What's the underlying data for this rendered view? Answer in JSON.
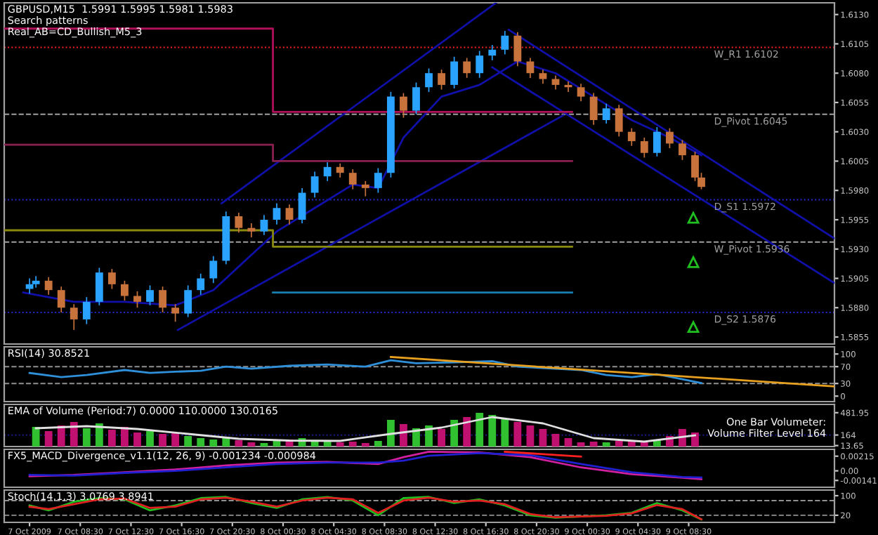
{
  "chart_data": [
    {
      "type": "candlestick",
      "title": "GBPUSD,M15  1.5991 1.5995 1.5981 1.5983",
      "annotations": [
        "Search patterns",
        "Real_AB=CD_Bullish_M5_3"
      ],
      "x": [
        "2009-10-07T04:30",
        "2009-10-07T05:00",
        "2009-10-07T06:00",
        "2009-10-07T07:00",
        "2009-10-07T08:00",
        "2009-10-07T09:00",
        "2009-10-07T10:00",
        "2009-10-07T11:00",
        "2009-10-07T12:00",
        "2009-10-07T13:00",
        "2009-10-07T14:00",
        "2009-10-07T15:00",
        "2009-10-07T16:00",
        "2009-10-07T17:00",
        "2009-10-07T18:00",
        "2009-10-07T19:00",
        "2009-10-07T20:00",
        "2009-10-07T21:00",
        "2009-10-07T22:00",
        "2009-10-07T23:00",
        "2009-10-08T00:00",
        "2009-10-08T01:00",
        "2009-10-08T02:00",
        "2009-10-08T03:00",
        "2009-10-08T04:00",
        "2009-10-08T05:00",
        "2009-10-08T06:00",
        "2009-10-08T07:00",
        "2009-10-08T08:00",
        "2009-10-08T09:00",
        "2009-10-08T10:00",
        "2009-10-08T11:00",
        "2009-10-08T12:00",
        "2009-10-08T13:00",
        "2009-10-08T14:00",
        "2009-10-08T15:00",
        "2009-10-08T16:00",
        "2009-10-08T17:00",
        "2009-10-08T18:00",
        "2009-10-08T19:00",
        "2009-10-08T20:00",
        "2009-10-08T21:00",
        "2009-10-08T22:00",
        "2009-10-08T23:00",
        "2009-10-09T00:00",
        "2009-10-09T01:00",
        "2009-10-09T02:00",
        "2009-10-09T03:00",
        "2009-10-09T04:00",
        "2009-10-09T05:00",
        "2009-10-09T06:00",
        "2009-10-09T07:00",
        "2009-10-09T08:00",
        "2009-10-09T09:00",
        "2009-10-09T09:30"
      ],
      "ohlc": [
        [
          1.5896,
          1.5905,
          1.5892,
          1.59
        ],
        [
          1.59,
          1.5907,
          1.5897,
          1.5903
        ],
        [
          1.5903,
          1.5906,
          1.5891,
          1.5895
        ],
        [
          1.5895,
          1.5898,
          1.5876,
          1.588
        ],
        [
          1.588,
          1.5883,
          1.5861,
          1.587
        ],
        [
          1.587,
          1.5889,
          1.5866,
          1.5885
        ],
        [
          1.5885,
          1.5914,
          1.5882,
          1.591
        ],
        [
          1.591,
          1.5913,
          1.5896,
          1.59
        ],
        [
          1.59,
          1.5903,
          1.5886,
          1.589
        ],
        [
          1.589,
          1.5894,
          1.588,
          1.5885
        ],
        [
          1.5885,
          1.5899,
          1.5882,
          1.5895
        ],
        [
          1.5895,
          1.5898,
          1.5876,
          1.588
        ],
        [
          1.588,
          1.5883,
          1.5868,
          1.5875
        ],
        [
          1.5875,
          1.5899,
          1.5872,
          1.5895
        ],
        [
          1.5895,
          1.5909,
          1.5891,
          1.5905
        ],
        [
          1.5905,
          1.5924,
          1.5901,
          1.592
        ],
        [
          1.592,
          1.5962,
          1.5917,
          1.5958
        ],
        [
          1.5958,
          1.5961,
          1.5944,
          1.5948
        ],
        [
          1.5948,
          1.5952,
          1.594,
          1.5945
        ],
        [
          1.5945,
          1.5959,
          1.5942,
          1.5955
        ],
        [
          1.5955,
          1.5969,
          1.5951,
          1.5965
        ],
        [
          1.5965,
          1.5968,
          1.5951,
          1.5955
        ],
        [
          1.5955,
          1.5982,
          1.5952,
          1.5978
        ],
        [
          1.5978,
          1.5996,
          1.5974,
          1.5992
        ],
        [
          1.5992,
          1.6004,
          1.5988,
          1.6
        ],
        [
          1.6,
          1.6003,
          1.5991,
          1.5995
        ],
        [
          1.5995,
          1.5998,
          1.5981,
          1.5985
        ],
        [
          1.5985,
          1.5988,
          1.5975,
          1.5982
        ],
        [
          1.5982,
          1.5999,
          1.5978,
          1.5995
        ],
        [
          1.5995,
          1.6064,
          1.5991,
          1.606
        ],
        [
          1.606,
          1.6063,
          1.6042,
          1.6048
        ],
        [
          1.6048,
          1.6072,
          1.6045,
          1.6068
        ],
        [
          1.6068,
          1.6084,
          1.6064,
          1.608
        ],
        [
          1.608,
          1.6083,
          1.6066,
          1.607
        ],
        [
          1.607,
          1.6094,
          1.6067,
          1.609
        ],
        [
          1.609,
          1.6093,
          1.6076,
          1.608
        ],
        [
          1.608,
          1.6099,
          1.6076,
          1.6095
        ],
        [
          1.6095,
          1.6104,
          1.6091,
          1.61
        ],
        [
          1.61,
          1.6116,
          1.6096,
          1.6112
        ],
        [
          1.6112,
          1.6115,
          1.6086,
          1.609
        ],
        [
          1.609,
          1.6093,
          1.6076,
          1.608
        ],
        [
          1.608,
          1.6083,
          1.6071,
          1.6075
        ],
        [
          1.6075,
          1.6078,
          1.6066,
          1.607
        ],
        [
          1.607,
          1.6073,
          1.6064,
          1.6068
        ],
        [
          1.6068,
          1.6071,
          1.6056,
          1.606
        ],
        [
          1.606,
          1.6063,
          1.6036,
          1.604
        ],
        [
          1.604,
          1.6054,
          1.6037,
          1.605
        ],
        [
          1.605,
          1.6053,
          1.6026,
          1.603
        ],
        [
          1.603,
          1.6033,
          1.6018,
          1.6022
        ],
        [
          1.6022,
          1.6025,
          1.6008,
          1.6012
        ],
        [
          1.6012,
          1.6034,
          1.6009,
          1.603
        ],
        [
          1.603,
          1.6033,
          1.6016,
          1.602
        ],
        [
          1.602,
          1.6023,
          1.6006,
          1.601
        ],
        [
          1.601,
          1.6013,
          1.5988,
          1.5991
        ],
        [
          1.5991,
          1.5995,
          1.5981,
          1.5983
        ]
      ],
      "colors": [
        "#29a3ff",
        "#29a3ff",
        "#c8733c",
        "#c8733c",
        "#c8733c",
        "#29a3ff",
        "#29a3ff",
        "#c8733c",
        "#c8733c",
        "#c8733c",
        "#29a3ff",
        "#c8733c",
        "#c8733c",
        "#29a3ff",
        "#29a3ff",
        "#29a3ff",
        "#29a3ff",
        "#c8733c",
        "#c8733c",
        "#29a3ff",
        "#29a3ff",
        "#c8733c",
        "#29a3ff",
        "#29a3ff",
        "#29a3ff",
        "#c8733c",
        "#c8733c",
        "#c8733c",
        "#29a3ff",
        "#29a3ff",
        "#c8733c",
        "#29a3ff",
        "#29a3ff",
        "#c8733c",
        "#29a3ff",
        "#c8733c",
        "#29a3ff",
        "#29a3ff",
        "#29a3ff",
        "#c8733c",
        "#c8733c",
        "#c8733c",
        "#c8733c",
        "#c8733c",
        "#c8733c",
        "#c8733c",
        "#29a3ff",
        "#c8733c",
        "#c8733c",
        "#c8733c",
        "#29a3ff",
        "#c8733c",
        "#c8733c",
        "#c8733c",
        "#c8733c"
      ],
      "series": [
        {
          "type": "line",
          "color": "#1010a8",
          "x": [
            "2009-10-07T04:00",
            "2009-10-07T08:00",
            "2009-10-07T12:00",
            "2009-10-07T16:00",
            "2009-10-07T19:00",
            "2009-10-07T21:00",
            "2009-10-08T00:00",
            "2009-10-08T03:00",
            "2009-10-08T06:00",
            "2009-10-08T08:00",
            "2009-10-08T10:00",
            "2009-10-08T13:00",
            "2009-10-08T16:00",
            "2009-10-08T19:00",
            "2009-10-08T22:00",
            "2009-10-09T01:00",
            "2009-10-09T04:00",
            "2009-10-09T07:00",
            "2009-10-09T09:30"
          ],
          "values": [
            1.5893,
            1.5885,
            1.5885,
            1.5882,
            1.5895,
            1.5915,
            1.5945,
            1.5965,
            1.5985,
            1.5982,
            1.6025,
            1.606,
            1.607,
            1.609,
            1.608,
            1.606,
            1.604,
            1.6025,
            1.601
          ]
        },
        {
          "type": "line",
          "color": "#1010a8",
          "x": [
            "2009-10-07T19:39",
            "2009-10-08T17:18"
          ],
          "values": [
            1.5969,
            1.614
          ]
        },
        {
          "type": "line",
          "color": "#1010a8",
          "x": [
            "2009-10-07T16:12",
            "2009-10-08T22:36"
          ],
          "values": [
            1.5861,
            1.6044
          ]
        },
        {
          "type": "line",
          "color": "#1010a8",
          "x": [
            "2009-10-08T18:18",
            "2009-10-09T20:00"
          ],
          "values": [
            1.6117,
            1.5939
          ]
        },
        {
          "type": "line",
          "color": "#1010a8",
          "x": [
            "2009-10-08T17:00",
            "2009-10-09T20:00"
          ],
          "values": [
            1.6085,
            1.5901
          ]
        },
        {
          "type": "step",
          "color": "#b0105a",
          "x": [
            "2009-10-07T02:30",
            "2009-10-07T23:42",
            "2009-10-08T23:18"
          ],
          "values": [
            1.6118,
            1.6047,
            1.6047
          ]
        },
        {
          "type": "step",
          "color": "#8a2050",
          "x": [
            "2009-10-07T02:30",
            "2009-10-07T23:42",
            "2009-10-08T23:18"
          ],
          "values": [
            1.6019,
            1.6005,
            1.6005
          ]
        },
        {
          "type": "step",
          "color": "#8a8a10",
          "x": [
            "2009-10-07T02:30",
            "2009-10-07T23:42",
            "2009-10-08T23:18"
          ],
          "values": [
            1.5946,
            1.5932,
            1.5932
          ]
        },
        {
          "type": "step",
          "color": "#1880b0",
          "x": [
            "2009-10-07T23:42",
            "2009-10-08T23:18"
          ],
          "values": [
            1.5893,
            1.5893
          ]
        }
      ],
      "ref_lines": [
        {
          "axis": "y",
          "value": 1.6102,
          "label": "W_R1 1.6102",
          "color": "#ff2020",
          "line_style": "dotted"
        },
        {
          "axis": "y",
          "value": 1.6045,
          "label": "D_Pivot 1.6045",
          "color": "#a0a0a0",
          "line_style": "dashed"
        },
        {
          "axis": "y",
          "value": 1.5972,
          "label": "D_S1 1.5972",
          "color": "#2828d0",
          "line_style": "dotted"
        },
        {
          "axis": "y",
          "value": 1.5936,
          "label": "W_Pivot 1.5936",
          "color": "#a0a0a0",
          "line_style": "dashed"
        },
        {
          "axis": "y",
          "value": 1.5876,
          "label": "D_S2 1.5876",
          "color": "#2828d0",
          "line_style": "dotted"
        }
      ],
      "xlim": [
        "2009-10-07T02:30",
        "2009-10-09T20:00"
      ],
      "ylim": [
        1.5849,
        1.614
      ],
      "yticks": [
        {
          "value": 1.613,
          "label": "1.6130"
        },
        {
          "value": 1.6105,
          "label": "1.6105"
        },
        {
          "value": 1.608,
          "label": "1.6080"
        },
        {
          "value": 1.6055,
          "label": "1.6055"
        },
        {
          "value": 1.603,
          "label": "1.6030"
        },
        {
          "value": 1.6005,
          "label": "1.6005"
        },
        {
          "value": 1.598,
          "label": "1.5980"
        },
        {
          "value": 1.5955,
          "label": "1.5955"
        },
        {
          "value": 1.593,
          "label": "1.5930"
        },
        {
          "value": 1.5905,
          "label": "1.5905"
        },
        {
          "value": 1.588,
          "label": "1.5880"
        },
        {
          "value": 1.5855,
          "label": "1.5855"
        }
      ],
      "tick_labels": "y"
    },
    {
      "type": "line",
      "title": "RSI(14) 30.8521",
      "series": [
        {
          "color": "#2f8fd8",
          "x": [
            "2009-10-07T04:30",
            "2009-10-07T07:00",
            "2009-10-07T09:00",
            "2009-10-07T12:00",
            "2009-10-07T14:00",
            "2009-10-07T16:00",
            "2009-10-07T18:00",
            "2009-10-07T20:00",
            "2009-10-07T22:00",
            "2009-10-08T01:00",
            "2009-10-08T04:00",
            "2009-10-08T07:00",
            "2009-10-08T09:00",
            "2009-10-08T11:00",
            "2009-10-08T14:00",
            "2009-10-08T17:00",
            "2009-10-08T19:00",
            "2009-10-08T22:00",
            "2009-10-09T00:00",
            "2009-10-09T02:00",
            "2009-10-09T04:00",
            "2009-10-09T06:00",
            "2009-10-09T08:00",
            "2009-10-09T09:30"
          ],
          "values": [
            55,
            45,
            50,
            62,
            55,
            58,
            60,
            70,
            65,
            72,
            75,
            70,
            85,
            78,
            80,
            83,
            70,
            65,
            62,
            50,
            45,
            52,
            40,
            30.8521
          ]
        },
        {
          "color": "#e8a020",
          "x": [
            "2009-10-08T09:00",
            "2009-10-09T20:00"
          ],
          "values": [
            93,
            23
          ]
        }
      ],
      "ref_lines": [
        {
          "axis": "y",
          "value": 70,
          "color": "#909090",
          "line_style": "dashed"
        },
        {
          "axis": "y",
          "value": 30,
          "color": "#909090",
          "line_style": "dashed"
        }
      ],
      "xlim": [
        "2009-10-07T02:30",
        "2009-10-09T20:00"
      ],
      "ylim": [
        -13,
        117
      ],
      "yticks": [
        100,
        70,
        30,
        0
      ],
      "tick_labels": "y"
    },
    {
      "type": "bar",
      "title": "EMA of Volume (Period:7) 0.0000 110.0000 130.0165",
      "annotations": [
        "One Bar Volumeter:",
        "Volume Filter Level 164"
      ],
      "series": [
        {
          "type": "bar",
          "x": [
            "2009-10-07T05:00",
            "2009-10-07T06:00",
            "2009-10-07T07:00",
            "2009-10-07T08:00",
            "2009-10-07T09:00",
            "2009-10-07T10:00",
            "2009-10-07T11:00",
            "2009-10-07T12:00",
            "2009-10-07T13:00",
            "2009-10-07T14:00",
            "2009-10-07T15:00",
            "2009-10-07T16:00",
            "2009-10-07T17:00",
            "2009-10-07T18:00",
            "2009-10-07T19:00",
            "2009-10-07T20:00",
            "2009-10-07T21:00",
            "2009-10-07T22:00",
            "2009-10-07T23:00",
            "2009-10-08T00:00",
            "2009-10-08T01:00",
            "2009-10-08T02:00",
            "2009-10-08T03:00",
            "2009-10-08T04:00",
            "2009-10-08T05:00",
            "2009-10-08T06:00",
            "2009-10-08T07:00",
            "2009-10-08T08:00",
            "2009-10-08T09:00",
            "2009-10-08T10:00",
            "2009-10-08T11:00",
            "2009-10-08T12:00",
            "2009-10-08T13:00",
            "2009-10-08T14:00",
            "2009-10-08T15:00",
            "2009-10-08T16:00",
            "2009-10-08T17:00",
            "2009-10-08T18:00",
            "2009-10-08T19:00",
            "2009-10-08T20:00",
            "2009-10-08T21:00",
            "2009-10-08T22:00",
            "2009-10-08T23:00",
            "2009-10-09T00:00",
            "2009-10-09T01:00",
            "2009-10-09T02:00",
            "2009-10-09T03:00",
            "2009-10-09T04:00",
            "2009-10-09T05:00",
            "2009-10-09T06:00",
            "2009-10-09T07:00",
            "2009-10-09T08:00",
            "2009-10-09T09:00"
          ],
          "values": [
            280,
            220,
            300,
            350,
            260,
            330,
            240,
            280,
            200,
            220,
            180,
            200,
            150,
            120,
            100,
            130,
            90,
            60,
            50,
            80,
            100,
            120,
            90,
            80,
            60,
            70,
            50,
            80,
            380,
            320,
            260,
            300,
            250,
            380,
            420,
            480,
            450,
            400,
            350,
            300,
            250,
            180,
            120,
            60,
            70,
            60,
            80,
            70,
            60,
            100,
            150,
            250,
            200
          ],
          "colors": [
            "#30c030",
            "#c01070",
            "#c01070",
            "#c01070",
            "#30c030",
            "#30c030",
            "#c01070",
            "#c01070",
            "#c01070",
            "#30c030",
            "#c01070",
            "#c01070",
            "#30c030",
            "#30c030",
            "#30c030",
            "#30c030",
            "#c01070",
            "#c01070",
            "#30c030",
            "#30c030",
            "#c01070",
            "#30c030",
            "#30c030",
            "#30c030",
            "#c01070",
            "#c01070",
            "#c01070",
            "#30c030",
            "#30c030",
            "#c01070",
            "#30c030",
            "#30c030",
            "#c01070",
            "#30c030",
            "#c01070",
            "#30c030",
            "#30c030",
            "#30c030",
            "#c01070",
            "#c01070",
            "#c01070",
            "#c01070",
            "#c01070",
            "#c01070",
            "#c01070",
            "#30c030",
            "#c01070",
            "#c01070",
            "#c01070",
            "#30c030",
            "#c01070",
            "#c01070",
            "#c01070"
          ]
        },
        {
          "type": "line",
          "color": "#e0e0e0",
          "x": [
            "2009-10-07T05:00",
            "2009-10-07T09:00",
            "2009-10-07T13:00",
            "2009-10-07T17:00",
            "2009-10-07T21:00",
            "2009-10-08T01:00",
            "2009-10-08T05:00",
            "2009-10-08T09:00",
            "2009-10-08T13:00",
            "2009-10-08T17:00",
            "2009-10-08T21:00",
            "2009-10-09T01:00",
            "2009-10-09T05:00",
            "2009-10-09T09:00"
          ],
          "values": [
            260,
            290,
            250,
            180,
            110,
            85,
            80,
            180,
            270,
            420,
            330,
            120,
            70,
            160
          ]
        }
      ],
      "ref_lines": [
        {
          "axis": "y",
          "value": 164,
          "color": "#2020a0",
          "line_style": "dotted"
        }
      ],
      "xlim": [
        "2009-10-07T02:30",
        "2009-10-09T20:00"
      ],
      "ylim": [
        0,
        600
      ],
      "yticks": [
        481.95,
        164,
        13.65
      ],
      "tick_labels": "y"
    },
    {
      "type": "line",
      "title": "FX5_MACD_Divergence_v1.1(12, 26, 9) -0.001234 -0.000984",
      "series": [
        {
          "color": "#d020a0",
          "x": [
            "2009-10-07T04:30",
            "2009-10-07T08:00",
            "2009-10-07T12:00",
            "2009-10-07T16:00",
            "2009-10-07T20:00",
            "2009-10-08T00:00",
            "2009-10-08T04:00",
            "2009-10-08T08:00",
            "2009-10-08T10:00",
            "2009-10-08T12:00",
            "2009-10-08T16:00",
            "2009-10-08T20:00",
            "2009-10-09T00:00",
            "2009-10-09T04:00",
            "2009-10-09T08:00",
            "2009-10-09T09:30"
          ],
          "values": [
            -0.0008,
            -0.0006,
            -0.0002,
            0.0002,
            0.0008,
            0.0012,
            0.0013,
            0.001,
            0.002,
            0.0028,
            0.0027,
            0.002,
            0.0005,
            -0.0005,
            -0.001,
            -0.001234
          ]
        },
        {
          "color": "#2020d0",
          "x": [
            "2009-10-07T04:30",
            "2009-10-07T08:00",
            "2009-10-07T12:00",
            "2009-10-07T16:00",
            "2009-10-07T20:00",
            "2009-10-08T00:00",
            "2009-10-08T04:00",
            "2009-10-08T08:00",
            "2009-10-08T10:00",
            "2009-10-08T12:00",
            "2009-10-08T16:00",
            "2009-10-08T20:00",
            "2009-10-09T00:00",
            "2009-10-09T04:00",
            "2009-10-09T08:00",
            "2009-10-09T09:30"
          ],
          "values": [
            -0.0006,
            -0.0007,
            -0.0003,
            0,
            0.0005,
            0.001,
            0.0012,
            0.0012,
            0.0015,
            0.0022,
            0.0026,
            0.0023,
            0.001,
            -0.0002,
            -0.0009,
            -0.000984
          ]
        },
        {
          "color": "#ff2020",
          "x": [
            "2009-10-08T18:00",
            "2009-10-09T00:00"
          ],
          "values": [
            0.0028,
            0.0021
          ]
        }
      ],
      "xlim": [
        "2009-10-07T02:30",
        "2009-10-09T20:00"
      ],
      "ylim": [
        -0.00241,
        0.00315
      ],
      "yticks": [
        {
          "value": 0.00215,
          "label": "0.00215"
        },
        {
          "value": 0,
          "label": "0.00"
        },
        {
          "value": -0.00141,
          "label": "-0.00141"
        }
      ],
      "tick_labels": "y"
    },
    {
      "type": "line",
      "title": "Stoch(14,1,3) 3.0769 3.8941",
      "series": [
        {
          "color": "#20c020",
          "x": [
            "2009-10-07T04:30",
            "2009-10-07T06:00",
            "2009-10-07T08:00",
            "2009-10-07T10:00",
            "2009-10-07T12:00",
            "2009-10-07T14:00",
            "2009-10-07T16:00",
            "2009-10-07T18:00",
            "2009-10-07T20:00",
            "2009-10-07T22:00",
            "2009-10-08T00:00",
            "2009-10-08T02:00",
            "2009-10-08T04:00",
            "2009-10-08T06:00",
            "2009-10-08T08:00",
            "2009-10-08T10:00",
            "2009-10-08T12:00",
            "2009-10-08T14:00",
            "2009-10-08T16:00",
            "2009-10-08T18:00",
            "2009-10-08T20:00",
            "2009-10-08T22:00",
            "2009-10-09T00:00",
            "2009-10-09T02:00",
            "2009-10-09T04:00",
            "2009-10-09T06:00",
            "2009-10-09T08:00",
            "2009-10-09T09:30"
          ],
          "values": [
            60,
            40,
            75,
            90,
            85,
            40,
            60,
            90,
            95,
            70,
            50,
            85,
            95,
            80,
            20,
            90,
            95,
            70,
            85,
            60,
            20,
            10,
            15,
            20,
            30,
            70,
            40,
            3.0769
          ]
        },
        {
          "color": "#e02020",
          "x": [
            "2009-10-07T04:30",
            "2009-10-07T06:00",
            "2009-10-07T08:00",
            "2009-10-07T10:00",
            "2009-10-07T12:00",
            "2009-10-07T14:00",
            "2009-10-07T16:00",
            "2009-10-07T18:00",
            "2009-10-07T20:00",
            "2009-10-07T22:00",
            "2009-10-08T00:00",
            "2009-10-08T02:00",
            "2009-10-08T04:00",
            "2009-10-08T06:00",
            "2009-10-08T08:00",
            "2009-10-08T10:00",
            "2009-10-08T12:00",
            "2009-10-08T14:00",
            "2009-10-08T16:00",
            "2009-10-08T18:00",
            "2009-10-08T20:00",
            "2009-10-08T22:00",
            "2009-10-09T00:00",
            "2009-10-09T02:00",
            "2009-10-09T04:00",
            "2009-10-09T06:00",
            "2009-10-09T08:00",
            "2009-10-09T09:30"
          ],
          "values": [
            55,
            45,
            65,
            85,
            88,
            50,
            55,
            85,
            92,
            75,
            55,
            80,
            92,
            85,
            30,
            80,
            92,
            75,
            80,
            65,
            25,
            12,
            15,
            18,
            28,
            62,
            45,
            3.8941
          ]
        }
      ],
      "ref_lines": [
        {
          "axis": "y",
          "value": 80,
          "color": "#909090",
          "line_style": "dashed"
        },
        {
          "axis": "y",
          "value": 20,
          "color": "#909090",
          "line_style": "dashed"
        }
      ],
      "xlim": [
        "2009-10-07T02:30",
        "2009-10-09T20:00"
      ],
      "ylim": [
        -9,
        123
      ],
      "yticks": [
        100,
        20
      ],
      "xticks": [
        {
          "value": "2009-10-07T04:30",
          "label": "7 Oct 2009"
        },
        {
          "value": "2009-10-07T08:30",
          "label": "7 Oct 08:30"
        },
        {
          "value": "2009-10-07T12:30",
          "label": "7 Oct 12:30"
        },
        {
          "value": "2009-10-07T16:30",
          "label": "7 Oct 16:30"
        },
        {
          "value": "2009-10-07T20:30",
          "label": "7 Oct 20:30"
        },
        {
          "value": "2009-10-08T00:30",
          "label": "8 Oct 00:30"
        },
        {
          "value": "2009-10-08T04:30",
          "label": "8 Oct 04:30"
        },
        {
          "value": "2009-10-08T08:30",
          "label": "8 Oct 08:30"
        },
        {
          "value": "2009-10-08T12:30",
          "label": "8 Oct 12:30"
        },
        {
          "value": "2009-10-08T16:30",
          "label": "8 Oct 16:30"
        },
        {
          "value": "2009-10-08T20:30",
          "label": "8 Oct 20:30"
        },
        {
          "value": "2009-10-09T00:30",
          "label": "9 Oct 00:30"
        },
        {
          "value": "2009-10-09T04:30",
          "label": "9 Oct 04:30"
        },
        {
          "value": "2009-10-09T08:30",
          "label": "9 Oct 08:30"
        }
      ]
    }
  ]
}
